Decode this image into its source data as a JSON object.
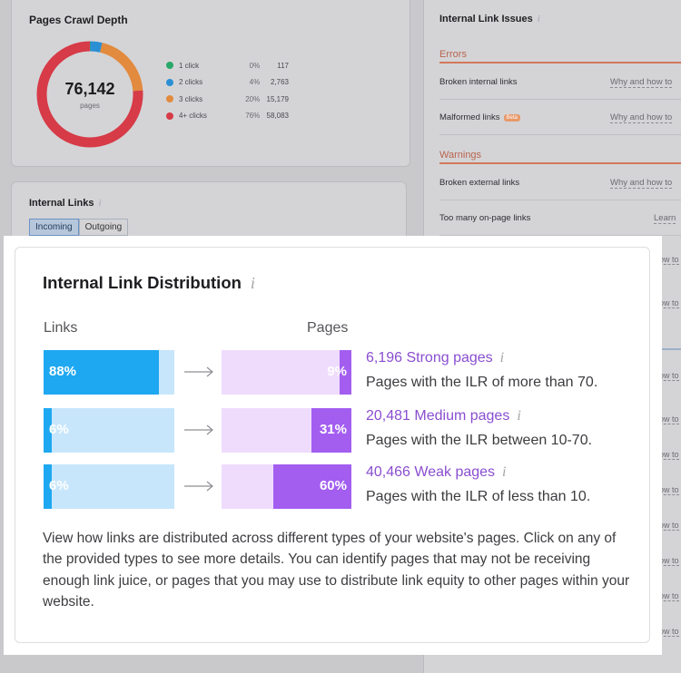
{
  "crawl_depth": {
    "title": "Pages Crawl Depth",
    "total": "76,142",
    "total_unit": "pages",
    "legend": [
      {
        "label": "1 click",
        "pct": "0%",
        "count": "117",
        "color": "#2aa86a",
        "share": 0.0015
      },
      {
        "label": "2 clicks",
        "pct": "4%",
        "count": "2,763",
        "color": "#2b8fd4",
        "share": 0.036
      },
      {
        "label": "3 clicks",
        "pct": "20%",
        "count": "15,179",
        "color": "#e28a3d",
        "share": 0.2
      },
      {
        "label": "4+ clicks",
        "pct": "76%",
        "count": "58,083",
        "color": "#d63b47",
        "share": 0.7625
      }
    ]
  },
  "internal_links_card": {
    "title": "Internal Links",
    "info": "i",
    "tabs": [
      "Incoming",
      "Outgoing"
    ]
  },
  "issues": {
    "title": "Internal Link Issues",
    "info": "i",
    "errors_label": "Errors",
    "warnings_label": "Warnings",
    "errors": [
      {
        "label": "Broken internal links",
        "link": "Why and how to"
      },
      {
        "label": "Malformed links",
        "badge": "Beta",
        "link": "Why and how to"
      }
    ],
    "warnings": [
      {
        "label": "Broken external links",
        "link": "Why and how to"
      },
      {
        "label": "Too many on-page links",
        "link": "Learn"
      }
    ],
    "edge_text": "ow to"
  },
  "distribution": {
    "title": "Internal Link Distribution",
    "info": "i",
    "links_header": "Links",
    "pages_header": "Pages",
    "rows": [
      {
        "links_pct": "88%",
        "links_value": 0.88,
        "pages_pct": "9%",
        "pages_value": 0.09,
        "title": "6,196 Strong pages",
        "desc": "Pages with the ILR of more than 70."
      },
      {
        "links_pct": "6%",
        "links_value": 0.06,
        "pages_pct": "31%",
        "pages_value": 0.31,
        "title": "20,481 Medium pages",
        "desc": "Pages with the ILR between 10-70."
      },
      {
        "links_pct": "6%",
        "links_value": 0.06,
        "pages_pct": "60%",
        "pages_value": 0.6,
        "title": "40,466 Weak pages",
        "desc": "Pages with the ILR of less than 10."
      }
    ],
    "description": "View how links are distributed across different types of your website's pages. Click on any of the provided types to see more details. You can identify pages that may not be receiving enough link juice, or pages that you may use to distribute link equity to other pages within your website."
  }
}
